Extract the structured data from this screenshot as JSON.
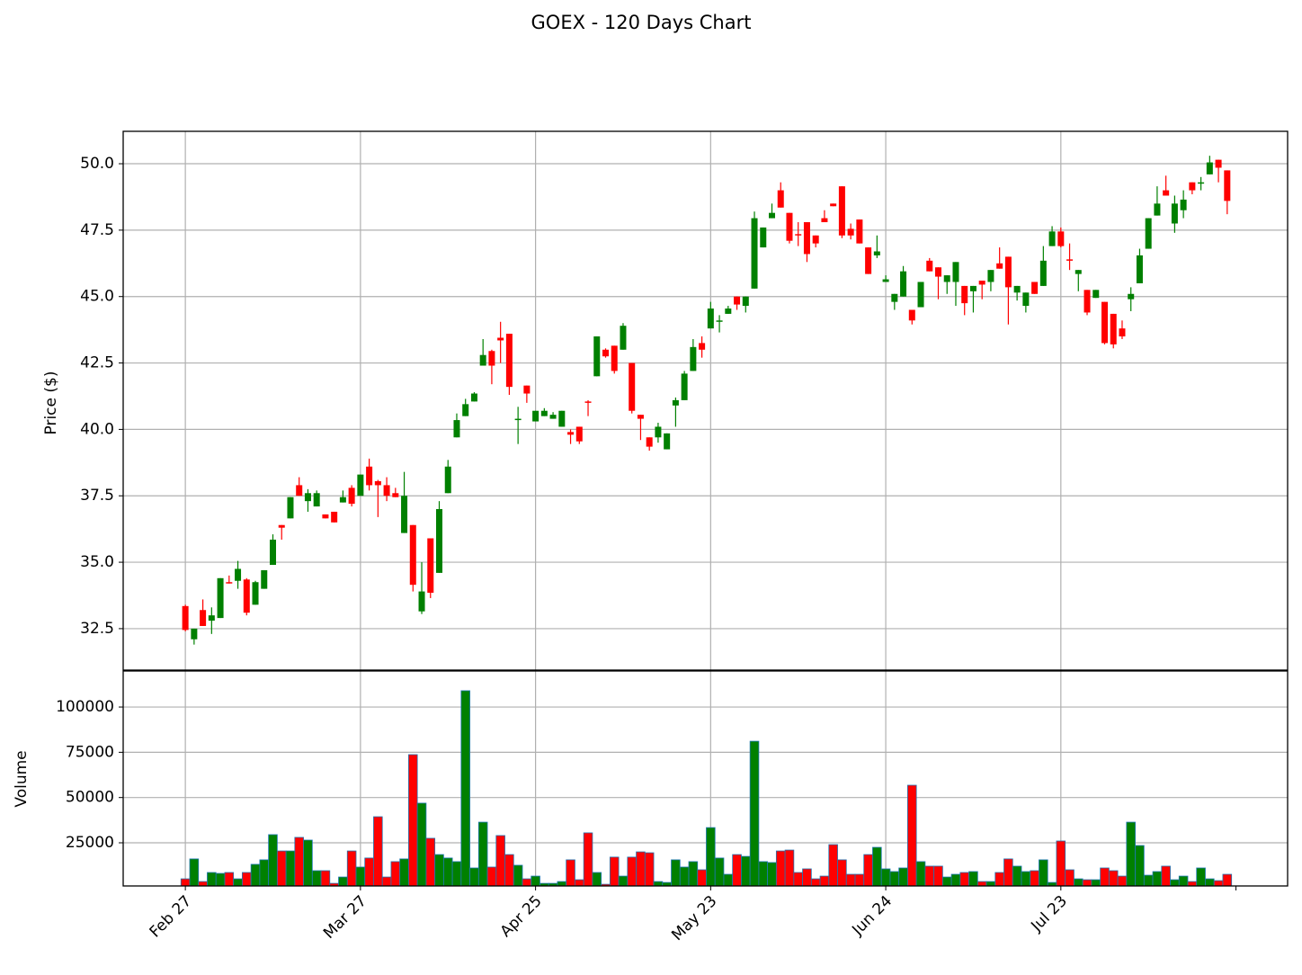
{
  "chart_data": {
    "type": "candlestick",
    "title": "GOEX - 120 Days Chart",
    "ylabel": "Price ($)",
    "volume_ylabel": "Volume",
    "categories": [
      "Feb 27",
      null,
      null,
      null,
      null,
      null,
      null,
      null,
      null,
      null,
      null,
      null,
      null,
      null,
      null,
      null,
      null,
      null,
      null,
      null,
      "Mar 27",
      null,
      null,
      null,
      null,
      null,
      null,
      null,
      null,
      null,
      null,
      null,
      null,
      null,
      null,
      null,
      null,
      null,
      null,
      null,
      "Apr 25",
      null,
      null,
      null,
      null,
      null,
      null,
      null,
      null,
      null,
      null,
      null,
      null,
      null,
      null,
      null,
      null,
      null,
      null,
      null,
      "May 23",
      null,
      null,
      null,
      null,
      null,
      null,
      null,
      null,
      null,
      null,
      null,
      null,
      null,
      null,
      null,
      null,
      null,
      null,
      null,
      "Jun 24",
      null,
      null,
      null,
      null,
      null,
      null,
      null,
      null,
      null,
      null,
      null,
      null,
      null,
      null,
      null,
      null,
      null,
      null,
      null,
      "Jul 23",
      null,
      null,
      null,
      null,
      null,
      null,
      null,
      null,
      null,
      null,
      null,
      null,
      null,
      null,
      null,
      null,
      null,
      null,
      null
    ],
    "open": [
      33.35,
      32.1,
      33.2,
      32.8,
      32.9,
      34.25,
      34.3,
      34.35,
      33.4,
      34.0,
      34.9,
      36.4,
      36.65,
      37.9,
      37.3,
      37.1,
      36.8,
      36.9,
      37.25,
      37.8,
      37.5,
      38.6,
      38.05,
      37.9,
      37.6,
      36.1,
      36.4,
      33.15,
      35.9,
      34.6,
      37.6,
      39.7,
      40.5,
      41.05,
      42.4,
      42.95,
      43.45,
      43.6,
      40.35,
      41.65,
      40.3,
      40.5,
      40.4,
      40.1,
      39.9,
      40.1,
      41.05,
      42.0,
      43.0,
      43.15,
      43.0,
      42.5,
      40.55,
      39.7,
      39.7,
      39.25,
      40.9,
      41.1,
      42.2,
      43.25,
      43.8,
      44.05,
      44.35,
      45.0,
      44.65,
      45.3,
      46.85,
      47.95,
      49.0,
      48.15,
      47.35,
      47.8,
      47.3,
      47.95,
      48.5,
      49.15,
      47.55,
      47.9,
      46.85,
      46.55,
      45.55,
      44.8,
      45.0,
      44.5,
      44.6,
      46.35,
      46.1,
      45.55,
      45.55,
      45.4,
      45.2,
      45.6,
      45.55,
      46.25,
      46.5,
      45.15,
      44.65,
      45.55,
      45.4,
      46.9,
      47.45,
      46.4,
      45.85,
      45.25,
      44.95,
      44.8,
      44.35,
      43.8,
      44.9,
      45.5,
      46.8,
      48.05,
      49.0,
      47.75,
      48.25,
      49.3,
      49.25,
      49.6,
      50.15,
      49.75
    ],
    "high": [
      33.4,
      32.5,
      33.6,
      33.3,
      34.4,
      34.5,
      35.05,
      34.4,
      34.3,
      34.7,
      36.05,
      36.4,
      37.45,
      38.2,
      37.75,
      37.7,
      36.8,
      36.9,
      37.7,
      37.9,
      38.3,
      38.9,
      38.1,
      38.2,
      37.8,
      38.4,
      36.4,
      35.0,
      35.9,
      37.3,
      38.85,
      40.6,
      41.15,
      41.4,
      43.4,
      43.0,
      44.05,
      43.6,
      40.85,
      41.65,
      40.7,
      40.8,
      40.65,
      40.7,
      40.0,
      40.1,
      41.1,
      43.5,
      43.05,
      43.15,
      44.0,
      42.5,
      40.55,
      39.7,
      40.25,
      39.85,
      41.2,
      42.2,
      43.4,
      43.5,
      44.8,
      44.3,
      44.65,
      45.0,
      45.0,
      48.2,
      47.6,
      48.5,
      49.3,
      48.15,
      47.8,
      47.8,
      47.3,
      48.25,
      48.5,
      49.15,
      47.75,
      47.9,
      46.85,
      47.3,
      45.8,
      45.1,
      46.15,
      44.5,
      45.55,
      46.45,
      46.1,
      45.8,
      46.3,
      45.4,
      45.4,
      45.6,
      46.0,
      46.85,
      46.5,
      45.4,
      45.15,
      45.55,
      46.9,
      47.65,
      47.6,
      47.0,
      46.0,
      45.25,
      45.25,
      44.8,
      44.35,
      44.1,
      45.35,
      46.8,
      47.95,
      49.15,
      49.55,
      48.8,
      49.0,
      49.3,
      49.5,
      50.3,
      50.15,
      49.75
    ],
    "low": [
      32.4,
      31.9,
      32.6,
      32.3,
      32.9,
      34.2,
      34.0,
      33.0,
      33.4,
      34.0,
      34.9,
      35.85,
      36.65,
      37.5,
      36.9,
      37.1,
      36.65,
      36.5,
      37.25,
      37.1,
      37.5,
      37.7,
      36.7,
      37.3,
      37.45,
      36.1,
      33.9,
      33.05,
      33.65,
      34.6,
      37.6,
      39.7,
      40.5,
      41.05,
      42.4,
      41.7,
      42.5,
      41.3,
      39.45,
      41.0,
      40.3,
      40.5,
      40.4,
      40.1,
      39.45,
      39.45,
      40.5,
      42.0,
      42.7,
      42.1,
      43.0,
      40.6,
      39.6,
      39.2,
      39.5,
      39.25,
      40.1,
      41.1,
      42.2,
      42.7,
      43.8,
      43.65,
      44.35,
      44.5,
      44.4,
      45.3,
      46.85,
      47.95,
      48.35,
      47.0,
      46.9,
      46.3,
      46.85,
      47.8,
      48.4,
      47.2,
      47.15,
      47.0,
      45.85,
      46.45,
      45.55,
      44.5,
      45.0,
      43.95,
      44.6,
      45.95,
      44.9,
      45.1,
      44.65,
      44.3,
      44.4,
      44.9,
      45.2,
      46.05,
      43.95,
      44.85,
      44.4,
      45.1,
      45.4,
      46.9,
      46.85,
      46.0,
      45.2,
      44.3,
      44.95,
      43.2,
      43.05,
      43.4,
      44.45,
      45.5,
      46.8,
      48.05,
      48.8,
      47.4,
      47.95,
      48.85,
      49.0,
      49.6,
      49.3,
      48.1
    ],
    "close": [
      32.45,
      32.5,
      32.6,
      33.0,
      34.4,
      34.2,
      34.75,
      33.1,
      34.25,
      34.7,
      35.85,
      36.3,
      37.45,
      37.5,
      37.6,
      37.6,
      36.65,
      36.5,
      37.45,
      37.2,
      38.3,
      37.9,
      37.9,
      37.5,
      37.45,
      37.5,
      34.15,
      33.9,
      33.85,
      37.0,
      38.6,
      40.35,
      40.95,
      41.35,
      42.8,
      42.4,
      43.35,
      41.6,
      40.4,
      41.35,
      40.7,
      40.7,
      40.55,
      40.7,
      39.8,
      39.55,
      41.0,
      43.5,
      42.75,
      42.2,
      43.9,
      40.7,
      40.4,
      39.35,
      40.1,
      39.85,
      41.1,
      42.1,
      43.1,
      43.0,
      44.55,
      44.1,
      44.55,
      44.7,
      45.0,
      47.95,
      47.6,
      48.15,
      48.35,
      47.1,
      47.3,
      46.6,
      47.0,
      47.8,
      48.4,
      47.3,
      47.3,
      47.0,
      45.85,
      46.7,
      45.65,
      45.1,
      45.95,
      44.1,
      45.55,
      45.95,
      45.75,
      45.8,
      46.3,
      44.75,
      45.4,
      45.45,
      46.0,
      46.05,
      45.35,
      45.4,
      45.15,
      45.1,
      46.35,
      47.45,
      46.9,
      46.35,
      46.0,
      44.4,
      45.25,
      43.25,
      43.2,
      43.5,
      45.1,
      46.55,
      47.95,
      48.5,
      48.8,
      48.5,
      48.65,
      49.0,
      49.3,
      50.05,
      49.85,
      48.6
    ],
    "volume": [
      5100,
      16100,
      3600,
      8600,
      8100,
      8600,
      5100,
      8600,
      13100,
      15600,
      29500,
      20500,
      20500,
      28000,
      26500,
      9600,
      9600,
      2600,
      6100,
      20500,
      11600,
      16600,
      39400,
      6100,
      14600,
      16100,
      73700,
      46900,
      27500,
      18500,
      16600,
      14600,
      109000,
      11100,
      36400,
      11600,
      29000,
      18500,
      12600,
      5100,
      6600,
      2600,
      2600,
      3600,
      15600,
      4600,
      30500,
      8600,
      2100,
      17100,
      6600,
      17100,
      20000,
      19500,
      3600,
      3100,
      15600,
      11600,
      14600,
      10100,
      33400,
      16600,
      7600,
      18500,
      17500,
      81100,
      14600,
      14100,
      20500,
      21000,
      8600,
      10600,
      5100,
      6600,
      24000,
      15600,
      7600,
      7600,
      18500,
      22500,
      10600,
      9100,
      11100,
      56800,
      14600,
      12100,
      12100,
      6100,
      7600,
      8600,
      9100,
      3600,
      3600,
      8600,
      16100,
      12100,
      9100,
      9600,
      15600,
      3100,
      26000,
      10100,
      5100,
      4600,
      4600,
      11100,
      9600,
      6600,
      36400,
      23500,
      7100,
      9100,
      12100,
      4600,
      6600,
      3600,
      11100,
      5100,
      4100,
      7600
    ],
    "up_color": "green",
    "down_color": "red",
    "volume_edge_color": "#1f77b4",
    "ylim": [
      30.94,
      51.22
    ],
    "yticks": [
      32.5,
      {
        "value": 35,
        "label": "35.0"
      },
      37.5,
      {
        "value": 40,
        "label": "40.0"
      },
      42.5,
      {
        "value": 45,
        "label": "45.0"
      },
      47.5,
      {
        "value": 50,
        "label": "50.0"
      }
    ],
    "volume_ylim": [
      1160,
      119900
    ],
    "volume_yticks": [
      25000,
      50000,
      75000,
      100000
    ],
    "grid": true
  }
}
